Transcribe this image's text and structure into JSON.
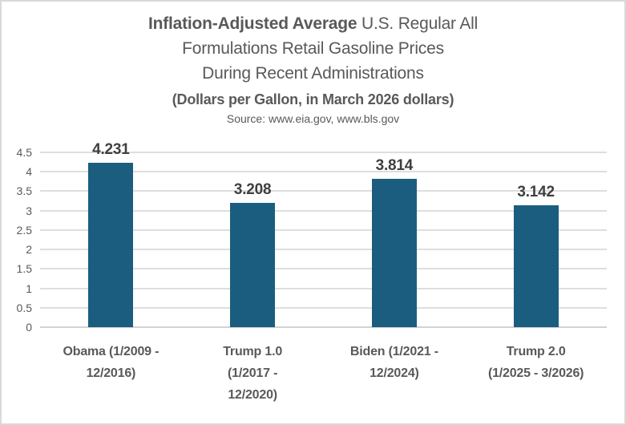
{
  "title": {
    "bold_part": "Inflation-Adjusted Average",
    "line1_rest": " U.S. Regular All",
    "line2": "Formulations Retail Gasoline Prices",
    "line3": "During Recent Administrations"
  },
  "subtitle": "(Dollars per Gallon, in March 2026 dollars)",
  "source": "Source: www.eia.gov, www.bls.gov",
  "chart_data": {
    "type": "bar",
    "title": "Inflation-Adjusted Average U.S. Regular All Formulations Retail Gasoline Prices During Recent Administrations",
    "subtitle": "(Dollars per Gallon, in March 2026 dollars)",
    "source": "Source: www.eia.gov, www.bls.gov",
    "categories": [
      "Obama (1/2009 - 12/2016)",
      "Trump 1.0 (1/2017 - 12/2020)",
      "Biden (1/2021 - 12/2024)",
      "Trump 2.0 (1/2025 - 3/2026)"
    ],
    "category_label_lines": [
      "Obama (1/2009 -\n12/2016)",
      "Trump 1.0\n(1/2017 -\n12/2020)",
      "Biden (1/2021 -\n12/2024)",
      "Trump 2.0\n(1/2025 - 3/2026)"
    ],
    "values": [
      4.231,
      3.208,
      3.814,
      3.142
    ],
    "data_labels": [
      "4.231",
      "3.208",
      "3.814",
      "3.142"
    ],
    "xlabel": "",
    "ylabel": "",
    "ylim": [
      0,
      4.5
    ],
    "yticks": [
      0,
      0.5,
      1,
      1.5,
      2,
      2.5,
      3,
      3.5,
      4,
      4.5
    ],
    "ytick_labels": [
      "0",
      "0.5",
      "1",
      "1.5",
      "2",
      "2.5",
      "3",
      "3.5",
      "4",
      "4.5"
    ],
    "grid": true,
    "legend": false,
    "bar_color": "#1b5d7e",
    "data_label_color": "#3f3f3f",
    "axis_text_color": "#595959",
    "gridline_color": "#dedede",
    "frame_border_color": "#d9d9d9"
  }
}
